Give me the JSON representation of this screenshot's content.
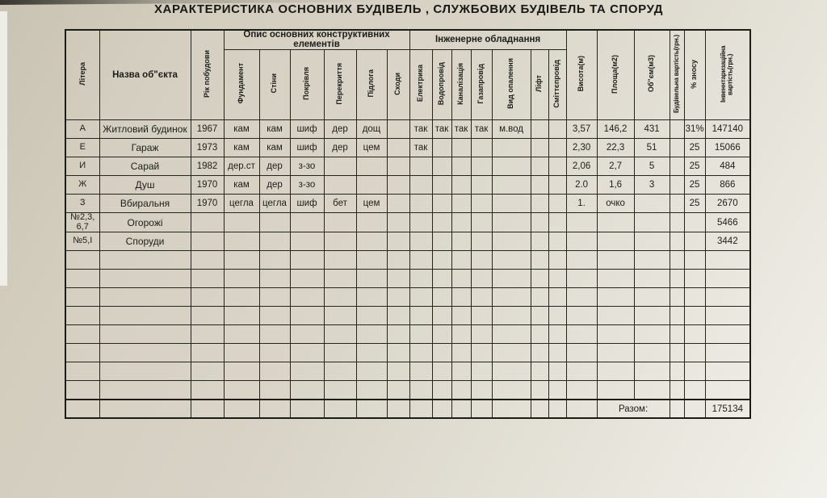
{
  "page": {
    "title": "ХАРАКТЕРИСТИКА  ОСНОВНИХ  БУДІВЕЛЬ , СЛУЖБОВИХ БУДІВЕЛЬ ТА СПОРУД"
  },
  "table": {
    "group_headers": {
      "construction": "Опис основних конструктивних елементів",
      "engineering": "Інженерне обладнання"
    },
    "column_headers": {
      "litera": "Літера",
      "name": "Назва об\"єкта",
      "year": "Рік побудови",
      "foundation": "Фундамент",
      "walls": "Стіни",
      "roof": "Покрівля",
      "ceiling": "Перекриття",
      "floor": "Підлога",
      "stairs": "Сходи",
      "electricity": "Електрика",
      "water": "Водопровід",
      "sewage": "Каналізація",
      "gas": "Газапровід",
      "heating": "Вид опалення",
      "elevator": "Ліфт",
      "garbage": "Сміттєпровід",
      "height": "Висота(м)",
      "area": "Площа(м2)",
      "volume": "Об\"єм(м3)",
      "build_cost": "Будівельна вартість(грн.)",
      "wear": "% зносу",
      "inventory_cost": "Інвеннтаризаційна вартість(грн.)"
    },
    "rows": [
      [
        "А",
        "Житловий будинок",
        "1967",
        "кам",
        "кам",
        "шиф",
        "дер",
        "дощ",
        "",
        "так",
        "так",
        "так",
        "так",
        "м.вод",
        "",
        "",
        "3,57",
        "146,2",
        "431",
        "",
        "31%",
        "147140"
      ],
      [
        "Е",
        "Гараж",
        "1973",
        "кам",
        "кам",
        "шиф",
        "дер",
        "цем",
        "",
        "так",
        "",
        "",
        "",
        "",
        "",
        "",
        "2,30",
        "22,3",
        "51",
        "",
        "25",
        "15066"
      ],
      [
        "И",
        "Сарай",
        "1982",
        "дер.ст",
        "дер",
        "з-зо",
        "",
        "",
        "",
        "",
        "",
        "",
        "",
        "",
        "",
        "",
        "2,06",
        "2,7",
        "5",
        "",
        "25",
        "484"
      ],
      [
        "Ж",
        "Душ",
        "1970",
        "кам",
        "дер",
        "з-зо",
        "",
        "",
        "",
        "",
        "",
        "",
        "",
        "",
        "",
        "",
        "2.0",
        "1,6",
        "3",
        "",
        "25",
        "866"
      ],
      [
        "З",
        "Вбиральня",
        "1970",
        "цегла",
        "цегла",
        "шиф",
        "бет",
        "цем",
        "",
        "",
        "",
        "",
        "",
        "",
        "",
        "",
        "1.",
        "очко",
        "",
        "",
        "25",
        "2670"
      ],
      [
        "№2,3, 6,7",
        "Огорожі",
        "",
        "",
        "",
        "",
        "",
        "",
        "",
        "",
        "",
        "",
        "",
        "",
        "",
        "",
        "",
        "",
        "",
        "",
        "",
        "5466"
      ],
      [
        "№5,І",
        "Споруди",
        "",
        "",
        "",
        "",
        "",
        "",
        "",
        "",
        "",
        "",
        "",
        "",
        "",
        "",
        "",
        "",
        "",
        "",
        "",
        "3442"
      ]
    ],
    "empty_row_count": 8,
    "footer": {
      "label": "Разом:",
      "total": "175134"
    }
  },
  "colors": {
    "paper": "#d6d1c3",
    "paper_light": "#f0efe9",
    "ink": "#1d1d1a",
    "line": "#25251f"
  }
}
